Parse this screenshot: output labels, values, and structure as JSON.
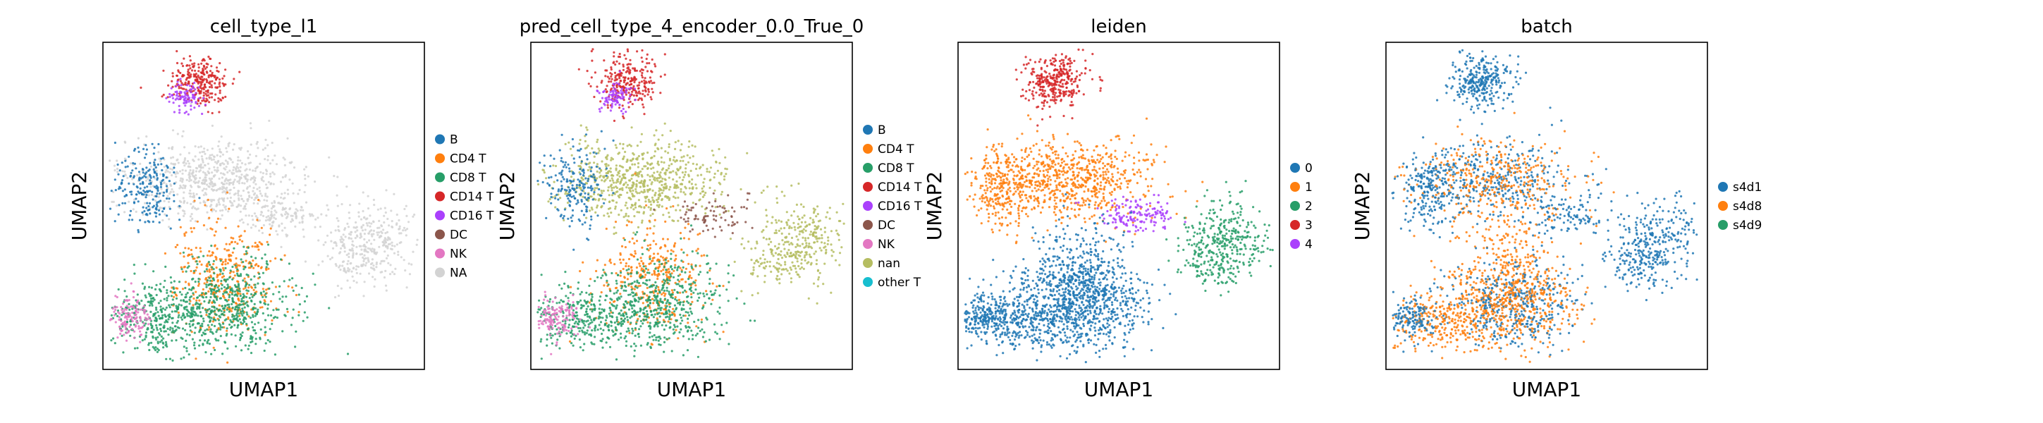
{
  "chart_data": [
    {
      "type": "scatter",
      "title": "cell_type_l1",
      "xlabel": "UMAP1",
      "ylabel": "UMAP2",
      "grid": false,
      "legend_position": "right",
      "legend": [
        {
          "name": "B",
          "color": "#1f77b4"
        },
        {
          "name": "CD4 T",
          "color": "#ff7f0e"
        },
        {
          "name": "CD8 T",
          "color": "#279e68"
        },
        {
          "name": "CD14 T",
          "color": "#d62728"
        },
        {
          "name": "CD16 T",
          "color": "#aa40fc"
        },
        {
          "name": "DC",
          "color": "#8c564b"
        },
        {
          "name": "NK",
          "color": "#e377c2"
        },
        {
          "name": "NA",
          "color": "#d3d3d3"
        }
      ]
    },
    {
      "type": "scatter",
      "title": "pred_cell_type_4_encoder_0.0_True_0",
      "xlabel": "UMAP1",
      "ylabel": "UMAP2",
      "grid": false,
      "legend_position": "right",
      "legend": [
        {
          "name": "B",
          "color": "#1f77b4"
        },
        {
          "name": "CD4 T",
          "color": "#ff7f0e"
        },
        {
          "name": "CD8 T",
          "color": "#279e68"
        },
        {
          "name": "CD14 T",
          "color": "#d62728"
        },
        {
          "name": "CD16 T",
          "color": "#aa40fc"
        },
        {
          "name": "DC",
          "color": "#8c564b"
        },
        {
          "name": "NK",
          "color": "#e377c2"
        },
        {
          "name": "nan",
          "color": "#b5bd61"
        },
        {
          "name": "other T",
          "color": "#17becf"
        }
      ]
    },
    {
      "type": "scatter",
      "title": "leiden",
      "xlabel": "UMAP1",
      "ylabel": "UMAP2",
      "grid": false,
      "legend_position": "right",
      "legend": [
        {
          "name": "0",
          "color": "#1f77b4"
        },
        {
          "name": "1",
          "color": "#ff7f0e"
        },
        {
          "name": "2",
          "color": "#279e68"
        },
        {
          "name": "3",
          "color": "#d62728"
        },
        {
          "name": "4",
          "color": "#aa40fc"
        }
      ]
    },
    {
      "type": "scatter",
      "title": "batch",
      "xlabel": "UMAP1",
      "ylabel": "UMAP2",
      "grid": false,
      "legend_position": "right",
      "legend": [
        {
          "name": "s4d1",
          "color": "#1f77b4"
        },
        {
          "name": "s4d8",
          "color": "#ff7f0e"
        },
        {
          "name": "s4d9",
          "color": "#279e68"
        }
      ]
    }
  ]
}
